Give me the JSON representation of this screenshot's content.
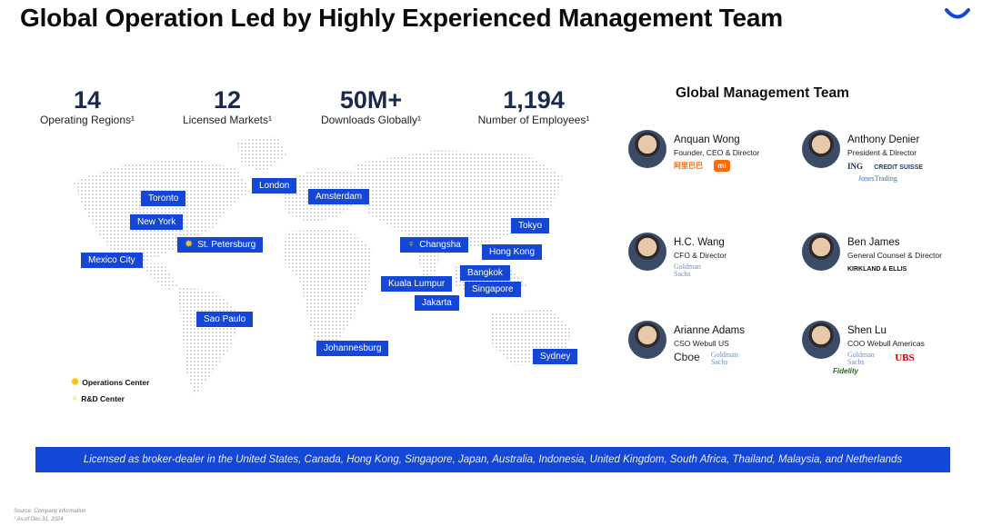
{
  "title": "Global Operation Led by Highly Experienced Management Team",
  "stats": [
    {
      "num": "14",
      "label": "Operating Regions¹"
    },
    {
      "num": "12",
      "label": "Licensed Markets¹"
    },
    {
      "num": "50M+",
      "label": "Downloads Globally¹"
    },
    {
      "num": "1,194",
      "label": "Number of Employees¹"
    }
  ],
  "cities": {
    "toronto": "Toronto",
    "new_york": "New York",
    "mexico_city": "Mexico City",
    "st_petersburg": "St. Petersburg",
    "london": "London",
    "amsterdam": "Amsterdam",
    "sao_paulo": "Sao Paulo",
    "johannesburg": "Johannesburg",
    "changsha": "Changsha",
    "hong_kong": "Hong Kong",
    "tokyo": "Tokyo",
    "bangkok": "Bangkok",
    "kuala_lumpur": "Kuala Lumpur",
    "singapore": "Singapore",
    "jakarta": "Jakarta",
    "sydney": "Sydney"
  },
  "legend": {
    "operations": "Operations Center",
    "rd": "R&D Center"
  },
  "management": {
    "title": "Global Management Team",
    "people": [
      {
        "name": "Anquan Wong",
        "role": "Founder, CEO & Director",
        "logos": [
          "阿里巴巴",
          "mi"
        ]
      },
      {
        "name": "Anthony Denier",
        "role": "President & Director",
        "logos": [
          "ING",
          "CREDIT SUISSE",
          "JonesTrading"
        ]
      },
      {
        "name": "H.C. Wang",
        "role": "CFO & Director",
        "logos": [
          "Goldman Sachs"
        ]
      },
      {
        "name": "Ben James",
        "role": "General Counsel & Director",
        "logos": [
          "KIRKLAND & ELLIS"
        ]
      },
      {
        "name": "Arianne Adams",
        "role": "CSO Webull US",
        "logos": [
          "Cboe",
          "Goldman Sachs"
        ]
      },
      {
        "name": "Shen Lu",
        "role": "COO Webull Americas",
        "logos": [
          "Goldman Sachs",
          "UBS",
          "Fidelity"
        ]
      }
    ]
  },
  "banner": "Licensed as broker-dealer in the United States, Canada, Hong Kong, Singapore, Japan, Australia, Indonesia, United Kingdom, South Africa, Thailand, Malaysia, and Netherlands",
  "footnotes": {
    "source": "Source: Company information",
    "note": "¹ As of Dec 31, 2024"
  },
  "colors": {
    "accent": "#1447d6",
    "pin": "#f6c21b"
  }
}
